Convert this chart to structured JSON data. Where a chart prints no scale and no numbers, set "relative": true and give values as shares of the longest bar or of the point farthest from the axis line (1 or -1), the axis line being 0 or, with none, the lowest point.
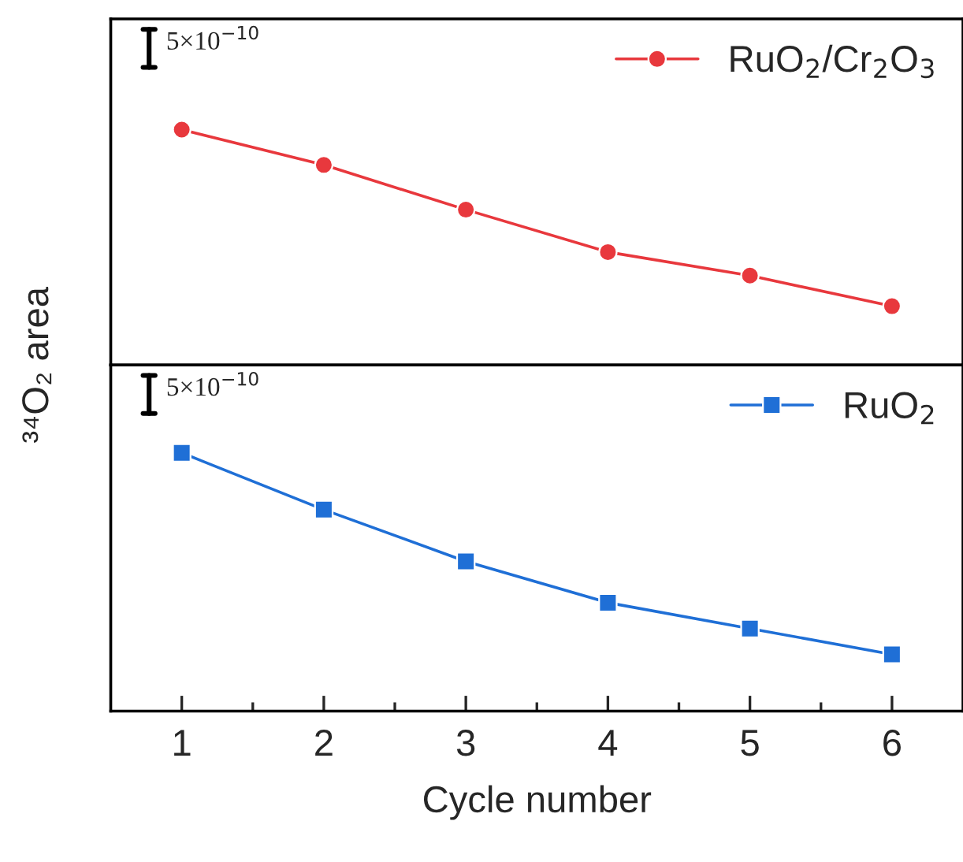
{
  "chart_data": [
    {
      "type": "line",
      "relative": true,
      "ylabel": "³⁴O₂ area",
      "x": [
        1,
        2,
        3,
        4,
        5,
        6
      ],
      "xlim": [
        0.5,
        6.5
      ],
      "xticks": [
        1,
        2,
        3,
        4,
        5,
        6
      ],
      "tick_labels": false,
      "legend": "top right",
      "marker": "circle",
      "line_style": "solid",
      "annotations": [
        "5×10$^{−10}$"
      ],
      "series": [
        {
          "name": "RuO$_{2}$/Cr$_{2}$O$_{3}$",
          "color": "#e8383d",
          "values": [
            1,
            0.85,
            0.66,
            0.48,
            0.38,
            0.25
          ]
        }
      ]
    },
    {
      "type": "line",
      "relative": true,
      "xlabel": "Cycle number",
      "x": [
        1,
        2,
        3,
        4,
        5,
        6
      ],
      "xlim": [
        0.5,
        6.5
      ],
      "xticks": [
        1,
        2,
        3,
        4,
        5,
        6
      ],
      "tick_labels": "x",
      "legend": "top right",
      "marker": "square",
      "line_style": "solid",
      "annotations": [
        "5×10$^{−10}$"
      ],
      "series": [
        {
          "name": "RuO$_{2}$",
          "color": "#1f6fd6",
          "values": [
            1,
            0.78,
            0.58,
            0.42,
            0.32,
            0.22
          ]
        }
      ]
    }
  ]
}
